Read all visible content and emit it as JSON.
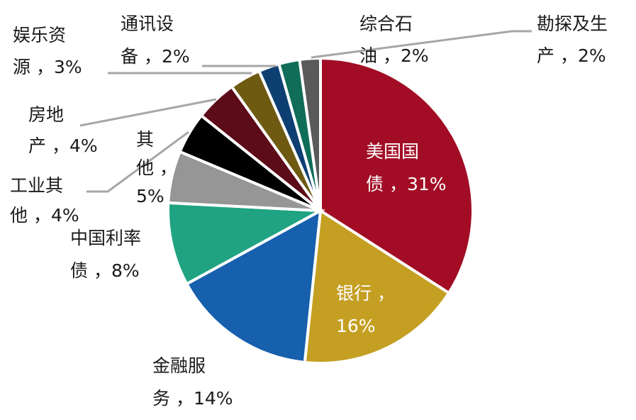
{
  "chart_data": {
    "type": "pie",
    "title": "",
    "slices": [
      {
        "lines": [
          "美国国",
          "债 ，31%"
        ],
        "value": 31,
        "color": "#a20d25"
      },
      {
        "lines": [
          "银行 ，",
          "16%"
        ],
        "value": 16,
        "color": "#c49f22"
      },
      {
        "lines": [
          "金融服",
          "务 ，14%"
        ],
        "value": 14,
        "color": "#1660ad"
      },
      {
        "lines": [
          "中国利率",
          "债 ，8%"
        ],
        "value": 8,
        "color": "#1fa382"
      },
      {
        "lines": [
          "其",
          "他 ，",
          "5%"
        ],
        "value": 5,
        "color": "#969696"
      },
      {
        "lines": [
          "工业其",
          "他 ，4%"
        ],
        "value": 4,
        "color": "#000000"
      },
      {
        "lines": [
          "房地",
          "产 ，4%"
        ],
        "value": 4,
        "color": "#5c0b18"
      },
      {
        "lines": [
          "娱乐资",
          "源 ，3%"
        ],
        "value": 3,
        "color": "#6f5a12"
      },
      {
        "lines": [
          "通讯设",
          "备 ，2%"
        ],
        "value": 2,
        "color": "#0e3f73"
      },
      {
        "lines": [
          "综合石",
          "油 ，2%"
        ],
        "value": 2,
        "color": "#0f6d58"
      },
      {
        "lines": [
          "勘探及生",
          "产 ，2%"
        ],
        "value": 2,
        "color": "#5a5a5a"
      }
    ]
  }
}
